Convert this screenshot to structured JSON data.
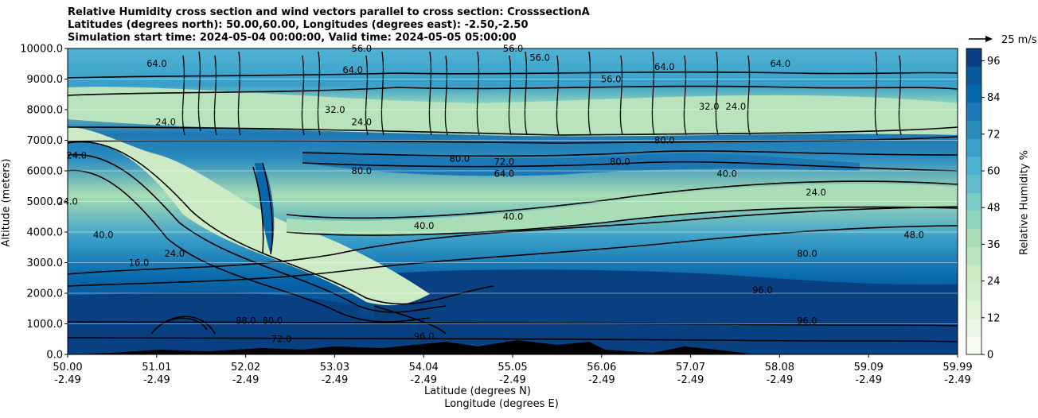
{
  "chart_data": {
    "type": "contour",
    "title": {
      "line1": "Relative Humidity cross section and wind vectors parallel to cross section: CrosssectionA",
      "line2": "Latitudes (degrees north): 50.00,60.00, Longitudes (degrees east): -2.50,-2.50",
      "line3": "Simulation start time: 2024-05-04 00:00:00, Valid time: 2024-05-05 05:00:00"
    },
    "ylabel": "Altitude (meters)",
    "xlabel_lat": "Latitude (degrees N)",
    "xlabel_lon": "Longitude (degrees E)",
    "colorbar_label": "Relative Humidity %",
    "quiver_key": "25 m/s",
    "ylim": [
      0,
      10000
    ],
    "yticks": [
      "0.0",
      "1000.0",
      "2000.0",
      "3000.0",
      "4000.0",
      "5000.0",
      "6000.0",
      "7000.0",
      "8000.0",
      "9000.0",
      "10000.0"
    ],
    "xticks": [
      {
        "lat": "50.00",
        "lon": "-2.49"
      },
      {
        "lat": "51.01",
        "lon": "-2.49"
      },
      {
        "lat": "52.02",
        "lon": "-2.49"
      },
      {
        "lat": "53.03",
        "lon": "-2.49"
      },
      {
        "lat": "54.04",
        "lon": "-2.49"
      },
      {
        "lat": "55.05",
        "lon": "-2.49"
      },
      {
        "lat": "56.06",
        "lon": "-2.49"
      },
      {
        "lat": "57.07",
        "lon": "-2.49"
      },
      {
        "lat": "58.08",
        "lon": "-2.49"
      },
      {
        "lat": "59.09",
        "lon": "-2.49"
      },
      {
        "lat": "59.99",
        "lon": "-2.49"
      }
    ],
    "colorbar_ticks": [
      "0",
      "12",
      "24",
      "36",
      "48",
      "60",
      "72",
      "84",
      "96"
    ],
    "colorbar_range": [
      0,
      100
    ],
    "colorbar_colors": [
      "#f7fcf0",
      "#eaf7e4",
      "#e0f3db",
      "#d3eecd",
      "#ccebc5",
      "#b8e3bd",
      "#a8ddb5",
      "#8fd4bd",
      "#7bccc4",
      "#63bbd0",
      "#4eb3d3",
      "#3a9fc9",
      "#2b8cbe",
      "#1d77b4",
      "#0868ac",
      "#085a9a",
      "#084081"
    ],
    "contour_labels": [
      {
        "text": "64.0",
        "lat": 51.0,
        "z": 9400
      },
      {
        "text": "56.0",
        "lat": 53.3,
        "z": 9900
      },
      {
        "text": "64.0",
        "lat": 53.2,
        "z": 9200
      },
      {
        "text": "56.0",
        "lat": 55.0,
        "z": 9900
      },
      {
        "text": "56.0",
        "lat": 55.3,
        "z": 9600
      },
      {
        "text": "56.0",
        "lat": 56.1,
        "z": 8900
      },
      {
        "text": "64.0",
        "lat": 58.0,
        "z": 9400
      },
      {
        "text": "64.0",
        "lat": 56.7,
        "z": 9300
      },
      {
        "text": "24.0",
        "lat": 51.1,
        "z": 7500
      },
      {
        "text": "24.0",
        "lat": 53.3,
        "z": 7500
      },
      {
        "text": "32.0",
        "lat": 53.0,
        "z": 7900
      },
      {
        "text": "32.0",
        "lat": 57.2,
        "z": 8000
      },
      {
        "text": "24.0",
        "lat": 57.5,
        "z": 8000
      },
      {
        "text": "80.0",
        "lat": 54.4,
        "z": 6300
      },
      {
        "text": "80.0",
        "lat": 56.2,
        "z": 6200
      },
      {
        "text": "80.0",
        "lat": 56.7,
        "z": 6900
      },
      {
        "text": "80.0",
        "lat": 53.3,
        "z": 5900
      },
      {
        "text": "72.0",
        "lat": 54.9,
        "z": 6200
      },
      {
        "text": "64.0",
        "lat": 54.9,
        "z": 5800
      },
      {
        "text": "40.0",
        "lat": 55.0,
        "z": 4400
      },
      {
        "text": "40.0",
        "lat": 57.4,
        "z": 5800
      },
      {
        "text": "40.0",
        "lat": 54.0,
        "z": 4100
      },
      {
        "text": "24.0",
        "lat": 50.1,
        "z": 6400
      },
      {
        "text": "24.0",
        "lat": 50.0,
        "z": 4900
      },
      {
        "text": "40.0",
        "lat": 50.4,
        "z": 3800
      },
      {
        "text": "16.0",
        "lat": 50.8,
        "z": 2900
      },
      {
        "text": "24.0",
        "lat": 51.2,
        "z": 3200
      },
      {
        "text": "80.0",
        "lat": 58.3,
        "z": 3200
      },
      {
        "text": "96.0",
        "lat": 58.3,
        "z": 1000
      },
      {
        "text": "96.0",
        "lat": 57.8,
        "z": 2000
      },
      {
        "text": "72.0",
        "lat": 52.4,
        "z": 400
      },
      {
        "text": "96.0",
        "lat": 54.0,
        "z": 500
      },
      {
        "text": "88.0",
        "lat": 52.0,
        "z": 1000
      },
      {
        "text": "80.0",
        "lat": 52.3,
        "z": 1000
      },
      {
        "text": "48.0",
        "lat": 59.5,
        "z": 3800
      },
      {
        "text": "24.0",
        "lat": 58.4,
        "z": 5200
      }
    ]
  }
}
